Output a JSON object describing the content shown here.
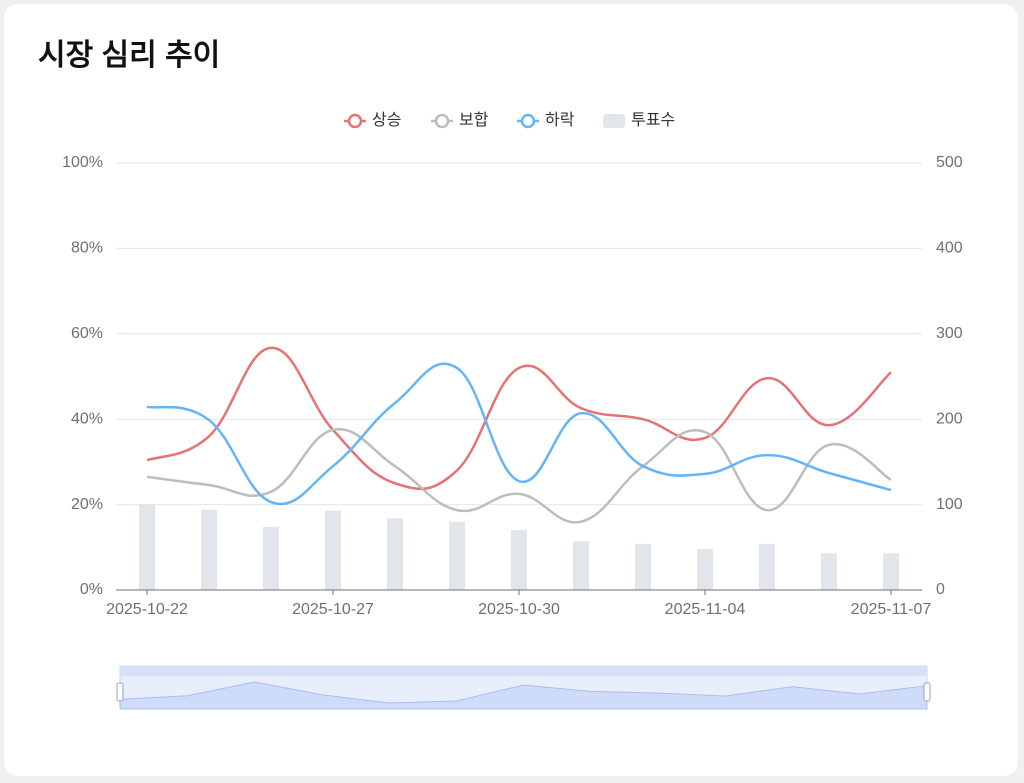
{
  "chart_data": {
    "type": "line",
    "title": "시장 심리 추이",
    "categories": [
      "2025-10-22",
      null,
      null,
      "2025-10-27",
      null,
      null,
      "2025-10-30",
      null,
      null,
      "2025-11-04",
      null,
      null,
      "2025-11-07"
    ],
    "series": [
      {
        "name": "상승",
        "color": "#e57373",
        "values": [
          30.4,
          36,
          56.7,
          37.5,
          25,
          28,
          52,
          42.6,
          40,
          35.6,
          49.6,
          38.6,
          51
        ]
      },
      {
        "name": "보합",
        "color": "#bdbdbd",
        "values": [
          26.5,
          24.6,
          23,
          37.5,
          29,
          18.7,
          22.5,
          16,
          29,
          37,
          18.7,
          34,
          25.8
        ]
      },
      {
        "name": "하락",
        "color": "#64b5f6",
        "values": [
          42.9,
          39.8,
          20.6,
          29,
          43.8,
          52,
          25.5,
          41.4,
          29,
          27.2,
          31.6,
          27.4,
          23.4
        ]
      },
      {
        "name": "투표수",
        "type": "bar",
        "axis": "y2",
        "color": "#e2e5ea",
        "values": [
          100,
          94,
          74,
          93,
          84,
          80,
          70,
          57,
          54,
          48,
          54,
          43,
          43
        ]
      }
    ],
    "ylim": [
      0,
      100
    ],
    "yticks": [
      {
        "value": 0,
        "label": "0%"
      },
      {
        "value": 20,
        "label": "20%"
      },
      {
        "value": 40,
        "label": "40%"
      },
      {
        "value": 60,
        "label": "60%"
      },
      {
        "value": 80,
        "label": "80%"
      },
      {
        "value": 100,
        "label": "100%"
      }
    ],
    "y2lim": [
      0,
      500
    ],
    "y2ticks": [
      0,
      100,
      200,
      300,
      400,
      500
    ],
    "grid": true,
    "legend": "top"
  }
}
